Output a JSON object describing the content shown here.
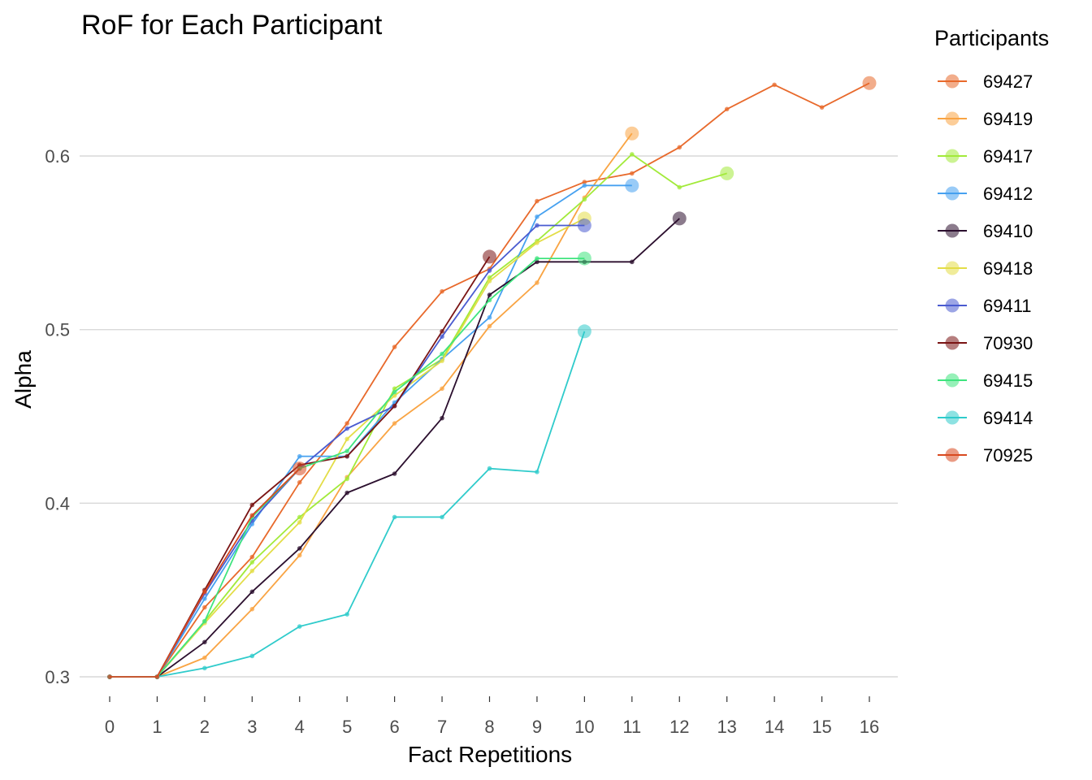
{
  "chart_data": {
    "type": "line",
    "title": "RoF for Each Participant",
    "xlabel": "Fact Repetitions",
    "ylabel": "Alpha",
    "xlim": [
      0,
      16
    ],
    "ylim": [
      0.3,
      0.64
    ],
    "x_ticks": [
      "0",
      "1",
      "2",
      "3",
      "4",
      "5",
      "6",
      "7",
      "8",
      "9",
      "10",
      "11",
      "12",
      "13",
      "14",
      "15",
      "16"
    ],
    "y_ticks": [
      {
        "value": 0.3,
        "label": "0.3"
      },
      {
        "value": 0.4,
        "label": "0.4"
      },
      {
        "value": 0.5,
        "label": "0.5"
      },
      {
        "value": 0.6,
        "label": "0.6"
      }
    ],
    "grid": "horizontal",
    "legend": {
      "title": "Participants",
      "position": "right"
    },
    "series": [
      {
        "name": "69427",
        "color": "#E8692B",
        "x": [
          0,
          1,
          2,
          3,
          4,
          5,
          6,
          7,
          8,
          9,
          10,
          11,
          12,
          13,
          14,
          15,
          16
        ],
        "values": [
          0.3,
          0.3,
          0.34,
          0.369,
          0.412,
          0.446,
          0.49,
          0.522,
          0.535,
          0.574,
          0.585,
          0.59,
          0.605,
          0.627,
          0.641,
          0.628,
          0.642
        ]
      },
      {
        "name": "69419",
        "color": "#F9A443",
        "x": [
          0,
          1,
          2,
          3,
          4,
          5,
          6,
          7,
          8,
          9,
          10,
          11
        ],
        "values": [
          0.3,
          0.3,
          0.311,
          0.339,
          0.37,
          0.415,
          0.446,
          0.466,
          0.502,
          0.527,
          0.576,
          0.613
        ]
      },
      {
        "name": "69417",
        "color": "#A2EA3A",
        "x": [
          0,
          1,
          2,
          3,
          4,
          5,
          6,
          7,
          8,
          9,
          10,
          11,
          12,
          13
        ],
        "values": [
          0.3,
          0.3,
          0.332,
          0.366,
          0.392,
          0.414,
          0.466,
          0.483,
          0.53,
          0.551,
          0.575,
          0.601,
          0.582,
          0.59
        ]
      },
      {
        "name": "69412",
        "color": "#46A1F0",
        "x": [
          0,
          1,
          2,
          3,
          4,
          5,
          6,
          7,
          8,
          9,
          10,
          11
        ],
        "values": [
          0.3,
          0.3,
          0.345,
          0.388,
          0.427,
          0.427,
          0.458,
          0.483,
          0.507,
          0.565,
          0.583,
          0.583
        ]
      },
      {
        "name": "69410",
        "color": "#2B0F2E",
        "x": [
          0,
          1,
          2,
          3,
          4,
          5,
          6,
          7,
          8,
          9,
          10,
          11,
          12
        ],
        "values": [
          0.3,
          0.3,
          0.32,
          0.349,
          0.374,
          0.406,
          0.417,
          0.449,
          0.52,
          0.539,
          0.539,
          0.539,
          0.564
        ]
      },
      {
        "name": "69418",
        "color": "#E3DD47",
        "x": [
          0,
          1,
          2,
          3,
          4,
          5,
          6,
          7,
          8,
          9,
          10
        ],
        "values": [
          0.3,
          0.3,
          0.331,
          0.361,
          0.389,
          0.437,
          0.462,
          0.482,
          0.528,
          0.55,
          0.564
        ]
      },
      {
        "name": "69411",
        "color": "#4A5BD0",
        "x": [
          0,
          1,
          2,
          3,
          4,
          5,
          6,
          7,
          8,
          9,
          10
        ],
        "values": [
          0.3,
          0.3,
          0.348,
          0.39,
          0.42,
          0.443,
          0.456,
          0.496,
          0.534,
          0.56,
          0.56
        ]
      },
      {
        "name": "70930",
        "color": "#7A1414",
        "x": [
          0,
          1,
          2,
          3,
          4,
          5,
          6,
          7,
          8
        ],
        "values": [
          0.3,
          0.3,
          0.35,
          0.399,
          0.422,
          0.427,
          0.456,
          0.499,
          0.542
        ]
      },
      {
        "name": "69415",
        "color": "#3FE47E",
        "x": [
          0,
          1,
          2,
          3,
          4,
          5,
          6,
          7,
          8,
          9,
          10
        ],
        "values": [
          0.3,
          0.3,
          0.332,
          0.392,
          0.42,
          0.43,
          0.464,
          0.486,
          0.517,
          0.541,
          0.541
        ]
      },
      {
        "name": "69414",
        "color": "#2FCBCB",
        "x": [
          0,
          1,
          2,
          3,
          4,
          5,
          6,
          7,
          8,
          9,
          10
        ],
        "values": [
          0.3,
          0.3,
          0.305,
          0.312,
          0.329,
          0.336,
          0.392,
          0.392,
          0.42,
          0.418,
          0.499
        ]
      },
      {
        "name": "70925",
        "color": "#D8491F",
        "x": [
          0,
          1,
          2,
          3,
          4
        ],
        "values": [
          0.3,
          0.3,
          0.349,
          0.393,
          0.42
        ]
      }
    ]
  }
}
